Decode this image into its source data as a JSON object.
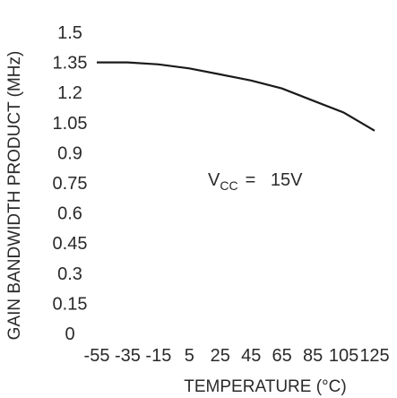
{
  "chart_data": {
    "type": "line",
    "xlabel": "TEMPERATURE (°C)",
    "ylabel": "GAIN BANDWIDTH PRODUCT (MHz)",
    "x_ticks": [
      -55,
      -35,
      -15,
      5,
      25,
      45,
      65,
      85,
      105,
      125
    ],
    "y_ticks": [
      0,
      0.15,
      0.3,
      0.45,
      0.6,
      0.75,
      0.9,
      1.05,
      1.2,
      1.35,
      1.5
    ],
    "xlim": [
      -55,
      125
    ],
    "ylim": [
      0,
      1.5
    ],
    "grid": false,
    "annotation": {
      "prefix": "V",
      "subscript": "CC",
      "value": "=   15V"
    },
    "series": [
      {
        "x": [
          -55,
          -35,
          -15,
          5,
          25,
          45,
          65,
          85,
          105,
          125
        ],
        "y": [
          1.35,
          1.35,
          1.34,
          1.32,
          1.29,
          1.26,
          1.22,
          1.16,
          1.1,
          1.01
        ]
      }
    ]
  }
}
